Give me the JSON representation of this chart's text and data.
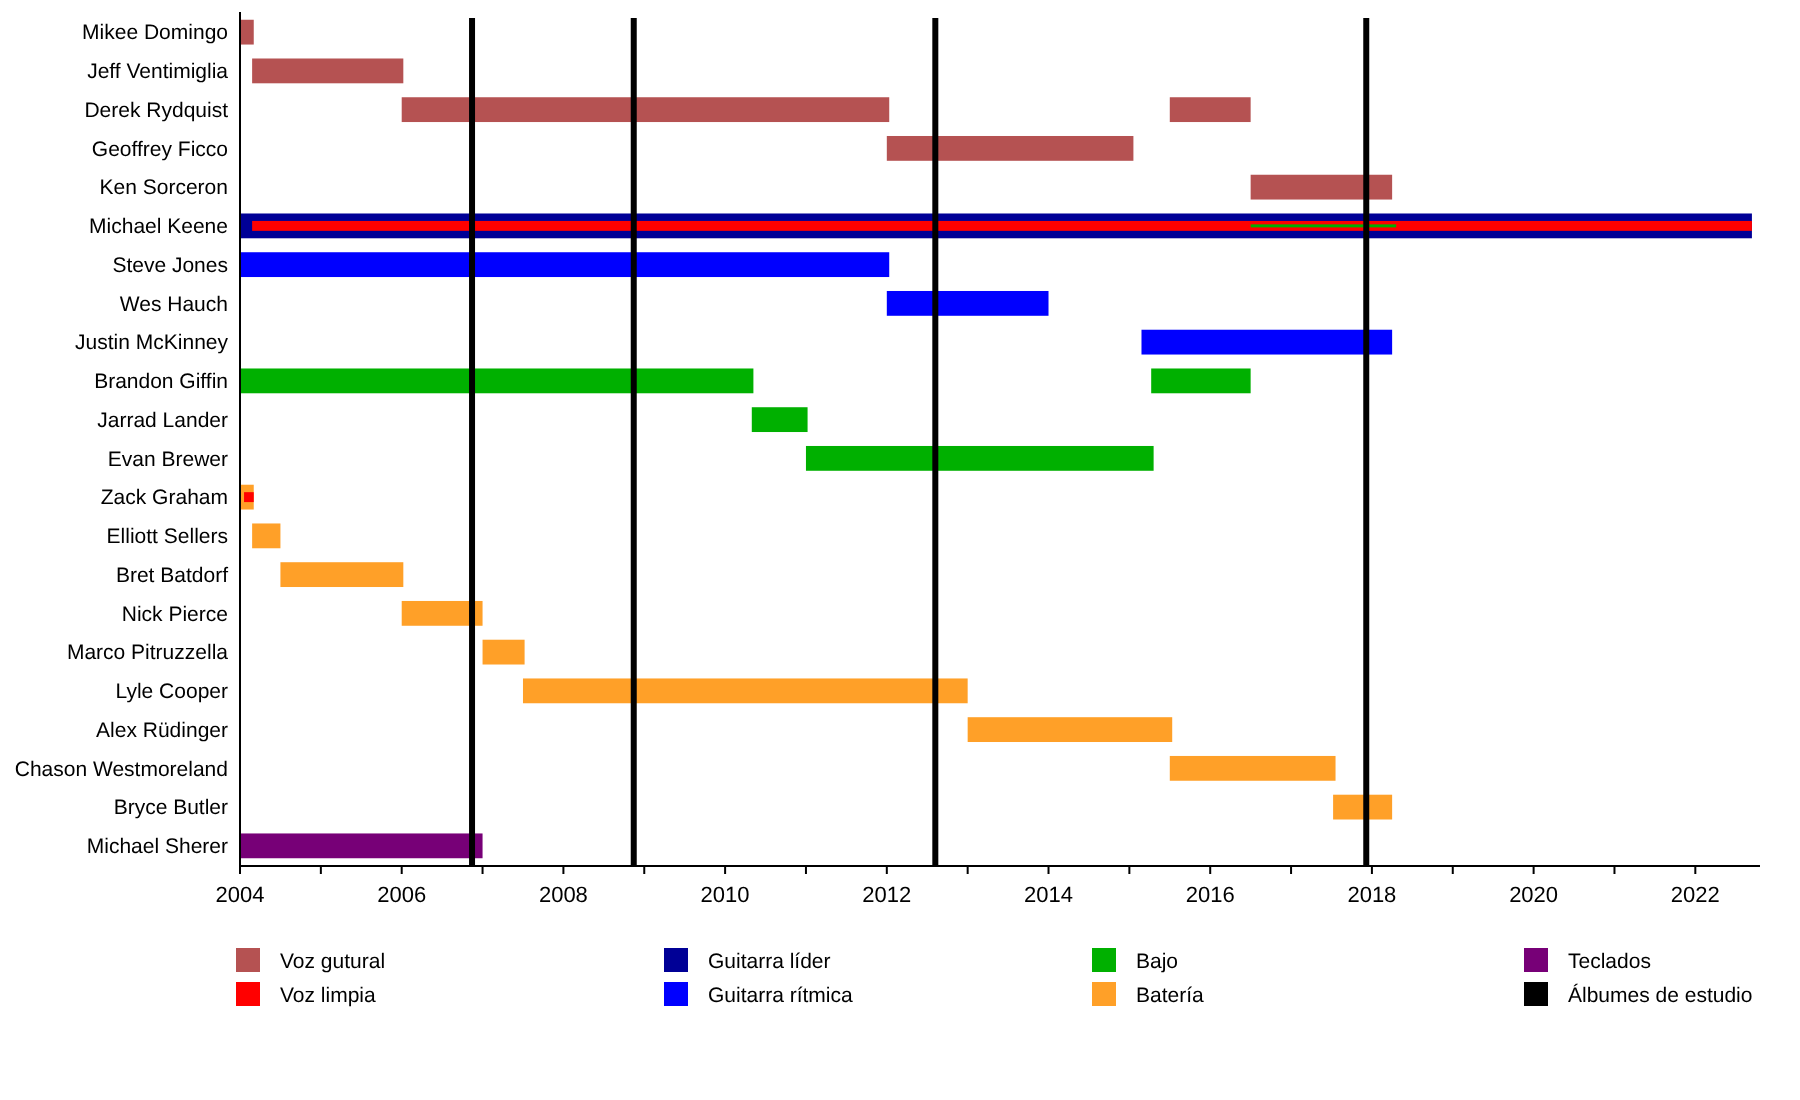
{
  "chart_data": {
    "type": "bar",
    "orientation": "horizontal",
    "categories": [
      "Mikee Domingo",
      "Jeff Ventimiglia",
      "Derek Rydquist",
      "Geoffrey Ficco",
      "Ken Sorceron",
      "Michael Keene",
      "Steve Jones",
      "Wes Hauch",
      "Justin McKinney",
      "Brandon Giffin",
      "Jarrad Lander",
      "Evan Brewer",
      "Zack Graham",
      "Elliott Sellers",
      "Bret Batdorf",
      "Nick Pierce",
      "Marco Pitruzzella",
      "Lyle Cooper",
      "Alex Rüdinger",
      "Chason Westmoreland",
      "Bryce Butler",
      "Michael Sherer"
    ],
    "series": [
      {
        "name": "Voz gutural",
        "color": "#b55252",
        "base": [
          2004.0,
          2004.15,
          2006.0,
          2012.0,
          2016.5,
          null,
          null,
          null,
          null,
          null,
          null,
          null,
          null,
          null,
          null,
          null,
          null,
          null,
          null,
          null,
          null,
          null
        ],
        "values": [
          0.17,
          1.87,
          6.03,
          3.05,
          1.75,
          null,
          null,
          null,
          null,
          null,
          null,
          null,
          null,
          null,
          null,
          null,
          null,
          null,
          null,
          null,
          null,
          null
        ]
      },
      {
        "name": "Voz limpia",
        "color": "#ff0000",
        "base": [
          null,
          null,
          null,
          null,
          null,
          2004.15,
          null,
          null,
          null,
          null,
          null,
          null,
          2004.05,
          null,
          null,
          null,
          null,
          null,
          null,
          null,
          null,
          null
        ],
        "values": [
          null,
          null,
          null,
          null,
          null,
          18.55,
          null,
          null,
          null,
          null,
          null,
          null,
          0.12,
          null,
          null,
          null,
          null,
          null,
          null,
          null,
          null,
          null
        ]
      },
      {
        "name": "Guitarra líder",
        "color": "#000096",
        "base": [
          null,
          null,
          null,
          null,
          null,
          2004.0,
          null,
          null,
          null,
          null,
          null,
          null,
          null,
          null,
          null,
          null,
          null,
          null,
          null,
          null,
          null,
          null
        ],
        "values": [
          null,
          null,
          null,
          null,
          null,
          18.7,
          null,
          null,
          null,
          null,
          null,
          null,
          null,
          null,
          null,
          null,
          null,
          null,
          null,
          null,
          null,
          null
        ]
      },
      {
        "name": "Guitarra rítmica",
        "color": "#0000ff",
        "base": [
          null,
          null,
          null,
          null,
          null,
          null,
          2004.0,
          2012.0,
          2015.15,
          null,
          null,
          null,
          null,
          null,
          null,
          null,
          null,
          null,
          null,
          null,
          null,
          null
        ],
        "values": [
          null,
          null,
          null,
          null,
          null,
          null,
          8.03,
          2.0,
          3.1,
          null,
          null,
          null,
          null,
          null,
          null,
          null,
          null,
          null,
          null,
          null,
          null,
          null
        ]
      },
      {
        "name": "Bajo",
        "color": "#00b000",
        "base": [
          null,
          null,
          null,
          null,
          null,
          2016.5,
          null,
          null,
          null,
          2004.0,
          2010.33,
          2011.0,
          null,
          null,
          null,
          null,
          null,
          null,
          null,
          null,
          null,
          null
        ],
        "values": [
          null,
          null,
          null,
          null,
          null,
          1.8,
          null,
          null,
          null,
          6.35,
          0.69,
          4.3,
          null,
          null,
          null,
          null,
          null,
          null,
          null,
          null,
          null,
          null
        ]
      },
      {
        "name": "Batería",
        "color": "#ffa028",
        "base": [
          null,
          null,
          null,
          null,
          null,
          null,
          null,
          null,
          null,
          null,
          null,
          null,
          2004.0,
          2004.15,
          2004.5,
          2006.0,
          2007.0,
          2007.5,
          2013.0,
          2015.5,
          2017.52,
          null
        ],
        "values": [
          null,
          null,
          null,
          null,
          null,
          null,
          null,
          null,
          null,
          null,
          null,
          null,
          0.17,
          0.35,
          1.52,
          1.0,
          0.52,
          5.5,
          2.53,
          2.05,
          0.73,
          null
        ]
      },
      {
        "name": "Teclados",
        "color": "#770077",
        "base": [
          null,
          null,
          null,
          null,
          null,
          null,
          null,
          null,
          null,
          null,
          null,
          null,
          null,
          null,
          null,
          null,
          null,
          null,
          null,
          null,
          null,
          2004.0
        ],
        "values": [
          null,
          null,
          null,
          null,
          null,
          null,
          null,
          null,
          null,
          null,
          null,
          null,
          null,
          null,
          null,
          null,
          null,
          null,
          null,
          null,
          null,
          3.0
        ]
      },
      {
        "color": "#b55252",
        "base": [
          null,
          null,
          2015.5,
          null,
          null,
          null,
          null,
          null,
          null,
          null,
          null,
          null,
          null,
          null,
          null,
          null,
          null,
          null,
          null,
          null,
          null,
          null
        ],
        "values": [
          null,
          null,
          1.0,
          null,
          null,
          null,
          null,
          null,
          null,
          null,
          null,
          null,
          null,
          null,
          null,
          null,
          null,
          null,
          null,
          null,
          null,
          null
        ]
      },
      {
        "color": "#00b000",
        "base": [
          null,
          null,
          null,
          null,
          null,
          null,
          null,
          null,
          null,
          2015.27,
          null,
          null,
          null,
          null,
          null,
          null,
          null,
          null,
          null,
          null,
          null,
          null
        ],
        "values": [
          null,
          null,
          null,
          null,
          null,
          null,
          null,
          null,
          null,
          1.23,
          null,
          null,
          null,
          null,
          null,
          null,
          null,
          null,
          null,
          null,
          null,
          null
        ]
      }
    ],
    "xlim": [
      2004,
      2022.8
    ],
    "xticks": [
      2004,
      {
        "value": 2005,
        "label": null
      },
      2006,
      {
        "value": 2007,
        "label": null
      },
      2008,
      {
        "value": 2009,
        "label": null
      },
      2010,
      {
        "value": 2011,
        "label": null
      },
      2012,
      {
        "value": 2013,
        "label": null
      },
      2014,
      {
        "value": 2015,
        "label": null
      },
      2016,
      {
        "value": 2017,
        "label": null
      },
      2018,
      {
        "value": 2019,
        "label": null
      },
      2020,
      {
        "value": 2021,
        "label": null
      },
      2022
    ],
    "ref_lines": [
      {
        "axis": "x",
        "value": 2006.87,
        "label": "Álbumes de estudio",
        "color": "#000000"
      },
      {
        "axis": "x",
        "value": 2008.87,
        "color": "#000000"
      },
      {
        "axis": "x",
        "value": 2012.6,
        "color": "#000000"
      },
      {
        "axis": "x",
        "value": 2017.93,
        "color": "#000000"
      }
    ],
    "legend": "bottom"
  }
}
